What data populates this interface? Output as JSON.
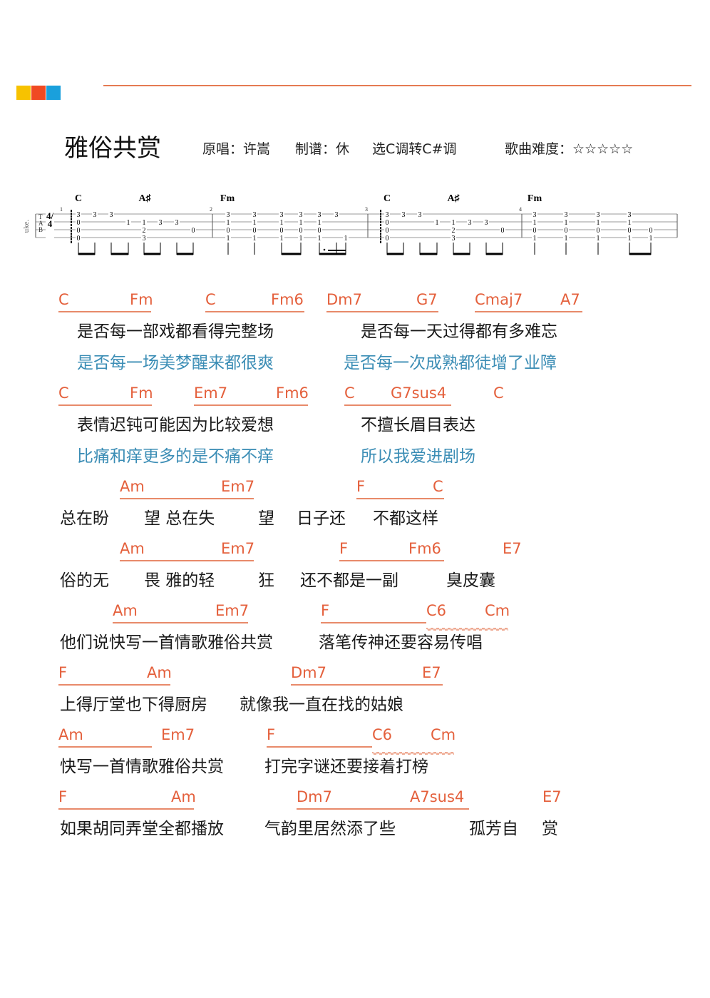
{
  "brand_colors": [
    "#f7c200",
    "#f04a22",
    "#1aa0dc"
  ],
  "colors": {
    "chord": "#e4603c",
    "lyric": "#1a1a1a",
    "alt_lyric": "#3b8db5",
    "header_line": "#e57a52"
  },
  "header": {
    "title": "雅俗共赏",
    "original_singer": "原唱：许嵩",
    "arranger": "制谱：休",
    "key": "选C调转C#调",
    "difficulty": "歌曲难度：☆☆☆☆☆"
  },
  "tab": {
    "instrument_label": "uke.",
    "time_signature": "4/4",
    "chords": [
      "C",
      "A♯",
      "Fm",
      "C",
      "A♯",
      "Fm"
    ],
    "measure_numbers": [
      "1",
      "2",
      "3",
      "4"
    ],
    "measures": [
      [
        [
          3,
          0,
          0,
          0
        ],
        [
          3,
          null,
          null,
          null
        ],
        [
          3,
          null,
          null,
          null
        ],
        [
          null,
          1,
          null,
          null
        ],
        [
          null,
          1,
          2,
          3
        ],
        [
          null,
          3,
          null,
          null
        ],
        [
          null,
          3,
          null,
          null
        ],
        [
          null,
          null,
          0,
          null
        ]
      ],
      [
        [
          3,
          1,
          0,
          1
        ],
        [
          3,
          1,
          0,
          1
        ],
        [
          3,
          1,
          0,
          1
        ],
        [
          3,
          1,
          0,
          1
        ],
        [
          3,
          1,
          0,
          1
        ],
        [
          3,
          null,
          null,
          null
        ],
        [
          null,
          null,
          null,
          1
        ]
      ],
      [
        [
          3,
          0,
          0,
          0
        ],
        [
          3,
          null,
          null,
          null
        ],
        [
          3,
          null,
          null,
          null
        ],
        [
          null,
          1,
          null,
          null
        ],
        [
          null,
          1,
          2,
          3
        ],
        [
          null,
          3,
          null,
          null
        ],
        [
          null,
          3,
          null,
          null
        ],
        [
          null,
          null,
          0,
          null
        ]
      ],
      [
        [
          3,
          1,
          0,
          1
        ],
        [
          3,
          1,
          0,
          1
        ],
        [
          3,
          1,
          0,
          1
        ],
        [
          3,
          1,
          0,
          1
        ],
        [
          null,
          null,
          0,
          1
        ]
      ]
    ]
  },
  "chord_rows": [
    [
      "C",
      "Fm",
      "C",
      "Fm6",
      "Dm7",
      "G7",
      "Cmaj7",
      "A7"
    ],
    [
      "C",
      "Fm",
      "Em7",
      "Fm6",
      "C",
      "G7sus4",
      "C"
    ],
    [
      "Am",
      "Em7",
      "F",
      "C"
    ],
    [
      "Am",
      "Em7",
      "F",
      "Fm6",
      "E7"
    ],
    [
      "Am",
      "Em7",
      "F",
      "C6",
      "Cm"
    ],
    [
      "F",
      "Am",
      "Dm7",
      "E7"
    ],
    [
      "Am",
      "Em7",
      "F",
      "C6",
      "Cm"
    ],
    [
      "F",
      "Am",
      "Dm7",
      "A7sus4",
      "E7"
    ]
  ],
  "lyrics": [
    [
      "是否每一部戏都看得完整场",
      "是否每一天过得都有多难忘"
    ],
    [
      "是否每一场美梦醒来都很爽",
      "是否每一次成熟都徒增了业障"
    ],
    [
      "表情迟钝可能因为比较爱想",
      "不擅长眉目表达"
    ],
    [
      "比痛和痒更多的是不痛不痒",
      "所以我爱进剧场"
    ],
    [
      "总在盼",
      "望 总在失",
      "望",
      "日子还",
      "不都这样"
    ],
    [
      "俗的无",
      "畏 雅的轻",
      "狂",
      "还不都是一副",
      "臭皮囊"
    ],
    [
      "他们说快写一首情歌雅俗共赏",
      "落笔传神还要容易传唱"
    ],
    [
      "上得厅堂也下得厨房",
      "就像我一直在找的姑娘"
    ],
    [
      "快写一首情歌雅俗共赏",
      "打完字谜还要接着打榜"
    ],
    [
      "如果胡同弄堂全都播放",
      "气韵里居然添了些",
      "孤芳自",
      "赏"
    ]
  ]
}
